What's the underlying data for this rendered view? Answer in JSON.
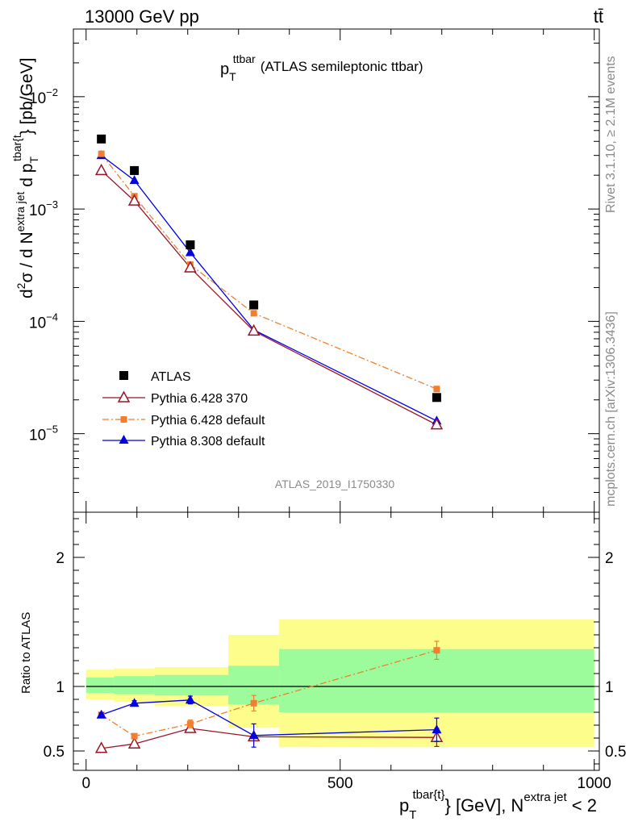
{
  "header": {
    "left": "13000 GeV pp",
    "right": "tt̄"
  },
  "side": {
    "rivet": "Rivet 3.1.10, ≥ 2.1M events",
    "mcplots": "mcplots.cern.ch [arXiv:1306.3436]"
  },
  "chart_data": [
    {
      "type": "scatter",
      "panel": "main",
      "title_base": "p",
      "title_sub": "T",
      "title_sup": "ttbar",
      "title_rest": "(ATLAS semileptonic ttbar)",
      "ylabel": "d²σ / d N^{extra jet} d p_T^{ttbar{t}} [pb/GeV]",
      "yscale": "log",
      "ylim": [
        2e-06,
        0.04
      ],
      "xlim": [
        -25,
        1010
      ],
      "yticks": [
        {
          "value": 1e-05,
          "mant": "10",
          "exp": "−5"
        },
        {
          "value": 0.0001,
          "mant": "10",
          "exp": "−4"
        },
        {
          "value": 0.001,
          "mant": "10",
          "exp": "−3"
        },
        {
          "value": 0.01,
          "mant": "10",
          "exp": "−2"
        }
      ],
      "watermark": "ATLAS_2019_I1750330",
      "legend_position": "bottom-left",
      "x": [
        30,
        95,
        205,
        330,
        690
      ],
      "series": [
        {
          "name": "ATLAS",
          "color": "#000000",
          "marker": "square-filled",
          "line": "none",
          "values": [
            0.0042,
            0.0022,
            0.00048,
            0.00014,
            2.1e-05
          ]
        },
        {
          "name": "Pythia 6.428 370",
          "color": "#99152a",
          "marker": "triangle-open",
          "line": "solid",
          "values": [
            0.0022,
            0.00118,
            0.0003,
            8.2e-05,
            1.2e-05
          ]
        },
        {
          "name": "Pythia 6.428 default",
          "color": "#f27e30",
          "marker": "square-small",
          "line": "dashdot",
          "values": [
            0.0031,
            0.0013,
            0.00032,
            0.000118,
            2.5e-05
          ]
        },
        {
          "name": "Pythia 8.308 default",
          "color": "#0000e0",
          "marker": "triangle-filled",
          "line": "solid",
          "values": [
            0.003,
            0.0018,
            0.00041,
            8.4e-05,
            1.3e-05
          ]
        }
      ]
    },
    {
      "type": "line",
      "panel": "ratio",
      "ylabel": "Ratio to ATLAS",
      "xlabel_base": "p",
      "xlabel_sub": "T",
      "xlabel_sup": "tbar{t}",
      "xlabel_mid": "} [GeV], N",
      "xlabel_sup2": "extra jet",
      "xlabel_end": " < 2",
      "xlim": [
        -25,
        1010
      ],
      "ylim": [
        0.35,
        2.35
      ],
      "xticks": [
        0,
        500,
        1000
      ],
      "yticks": [
        0.5,
        1,
        2
      ],
      "bands": {
        "edges": [
          0,
          55,
          135,
          280,
          380,
          1000
        ],
        "stat_lo": [
          0.95,
          0.94,
          0.93,
          0.86,
          0.8
        ],
        "stat_hi": [
          1.07,
          1.08,
          1.09,
          1.16,
          1.29
        ],
        "total_lo": [
          0.9,
          0.88,
          0.85,
          0.68,
          0.53
        ],
        "total_hi": [
          1.13,
          1.14,
          1.15,
          1.4,
          1.52
        ],
        "stat_color": "#9cfc9c",
        "total_color": "#fdfd8c"
      },
      "x": [
        30,
        95,
        205,
        330,
        690
      ],
      "series": [
        {
          "name": "Pythia 6.428 370",
          "color": "#99152a",
          "marker": "triangle-open",
          "line": "solid",
          "values": [
            0.52,
            0.555,
            0.675,
            0.61,
            0.605
          ],
          "err": [
            0,
            0,
            0,
            0,
            0.07
          ]
        },
        {
          "name": "Pythia 6.428 default",
          "color": "#f27e30",
          "marker": "square-small",
          "line": "dashdot",
          "values": [
            0.78,
            0.615,
            0.71,
            0.87,
            1.28
          ],
          "err": [
            0.015,
            0.015,
            0.03,
            0.06,
            0.07
          ]
        },
        {
          "name": "Pythia 8.308 default",
          "color": "#0000e0",
          "marker": "triangle-filled",
          "line": "solid",
          "values": [
            0.78,
            0.87,
            0.895,
            0.62,
            0.665
          ],
          "err": [
            0.015,
            0.02,
            0.03,
            0.09,
            0.09
          ]
        }
      ]
    }
  ]
}
